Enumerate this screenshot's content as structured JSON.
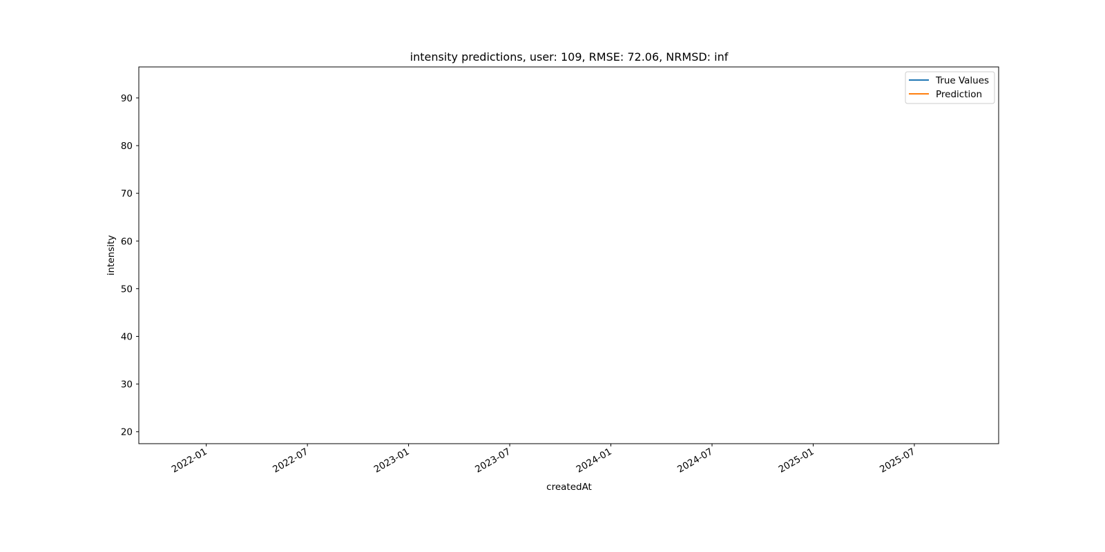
{
  "chart_data": {
    "type": "line",
    "title": "intensity predictions, user: 109, RMSE: 72.06, NRMSD: inf",
    "xlabel": "createdAt",
    "ylabel": "intensity",
    "x_ticks": [
      "2022-01",
      "2022-07",
      "2023-01",
      "2023-07",
      "2024-01",
      "2024-07",
      "2025-01",
      "2025-07"
    ],
    "y_ticks": [
      20,
      30,
      40,
      50,
      60,
      70,
      80,
      90
    ],
    "xlim": [
      "2021-09",
      "2025-12"
    ],
    "ylim": [
      17.5,
      96.5
    ],
    "grid": false,
    "legend_position": "top-right",
    "series": [
      {
        "name": "True Values",
        "color": "#1f77b4",
        "x": [],
        "y": []
      },
      {
        "name": "Prediction",
        "color": "#ff7f0e",
        "x": [],
        "y": []
      }
    ]
  }
}
